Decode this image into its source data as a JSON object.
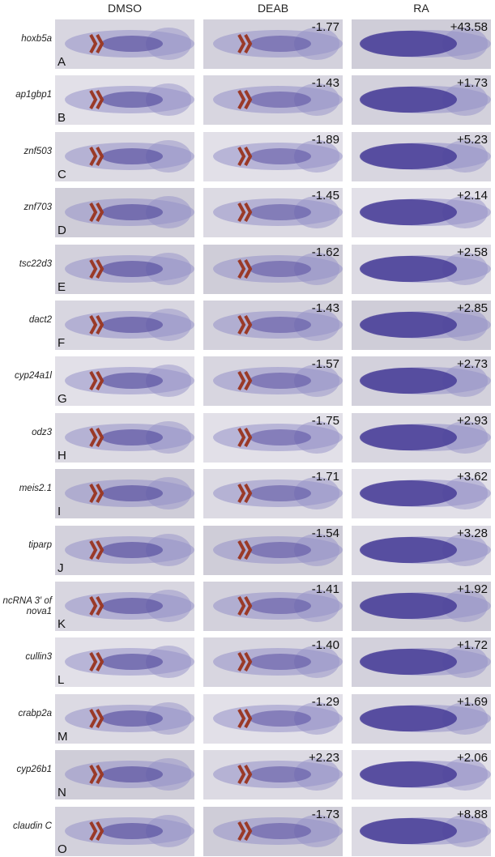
{
  "columns": [
    "DMSO",
    "DEAB",
    "RA"
  ],
  "rows": [
    {
      "gene": "hoxb5a",
      "panel": "A",
      "deab": "-1.77",
      "ra": "+43.58"
    },
    {
      "gene": "ap1gbp1",
      "panel": "B",
      "deab": "-1.43",
      "ra": "+1.73"
    },
    {
      "gene": "znf503",
      "panel": "C",
      "deab": "-1.89",
      "ra": "+5.23"
    },
    {
      "gene": "znf703",
      "panel": "D",
      "deab": "-1.45",
      "ra": "+2.14"
    },
    {
      "gene": "tsc22d3",
      "panel": "E",
      "deab": "-1.62",
      "ra": "+2.58"
    },
    {
      "gene": "dact2",
      "panel": "F",
      "deab": "-1.43",
      "ra": "+2.85"
    },
    {
      "gene": "cyp24a1l",
      "panel": "G",
      "deab": "-1.57",
      "ra": "+2.73"
    },
    {
      "gene": "odz3",
      "panel": "H",
      "deab": "-1.75",
      "ra": "+2.93"
    },
    {
      "gene": "meis2.1",
      "panel": "I",
      "deab": "-1.71",
      "ra": "+3.62"
    },
    {
      "gene": "tiparp",
      "panel": "J",
      "deab": "-1.54",
      "ra": "+3.28"
    },
    {
      "gene": "ncRNA 3′ of nova1",
      "panel": "K",
      "deab": "-1.41",
      "ra": "+1.92"
    },
    {
      "gene": "cullin3",
      "panel": "L",
      "deab": "-1.40",
      "ra": "+1.72"
    },
    {
      "gene": "crabp2a",
      "panel": "M",
      "deab": "-1.29",
      "ra": "+1.69"
    },
    {
      "gene": "cyp26b1",
      "panel": "N",
      "deab": "+2.23",
      "ra": "+2.06"
    },
    {
      "gene": "claudin C",
      "panel": "O",
      "deab": "-1.73",
      "ra": "+8.88"
    }
  ]
}
